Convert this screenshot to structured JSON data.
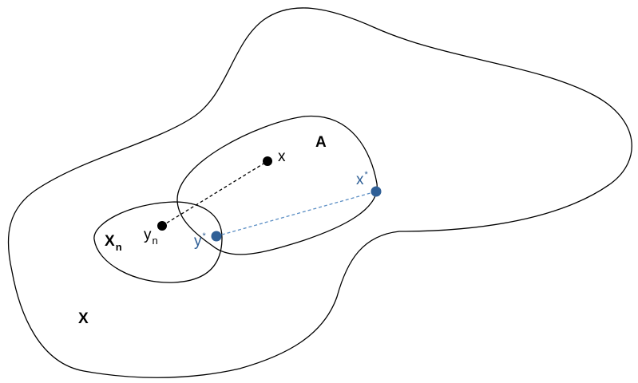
{
  "colors": {
    "outline": "#000000",
    "black_point": "#000000",
    "blue_point": "#2f5f96"
  },
  "labels": {
    "big_set": "X",
    "set_a": "A",
    "set_xn_base": "X",
    "set_xn_sub": "n",
    "point_x": "x",
    "point_yn_base": "y",
    "point_yn_sub": "n",
    "point_xstar_base": "x",
    "point_xstar_sup": "*",
    "point_ystar_base": "y",
    "point_ystar_sup": "*"
  }
}
